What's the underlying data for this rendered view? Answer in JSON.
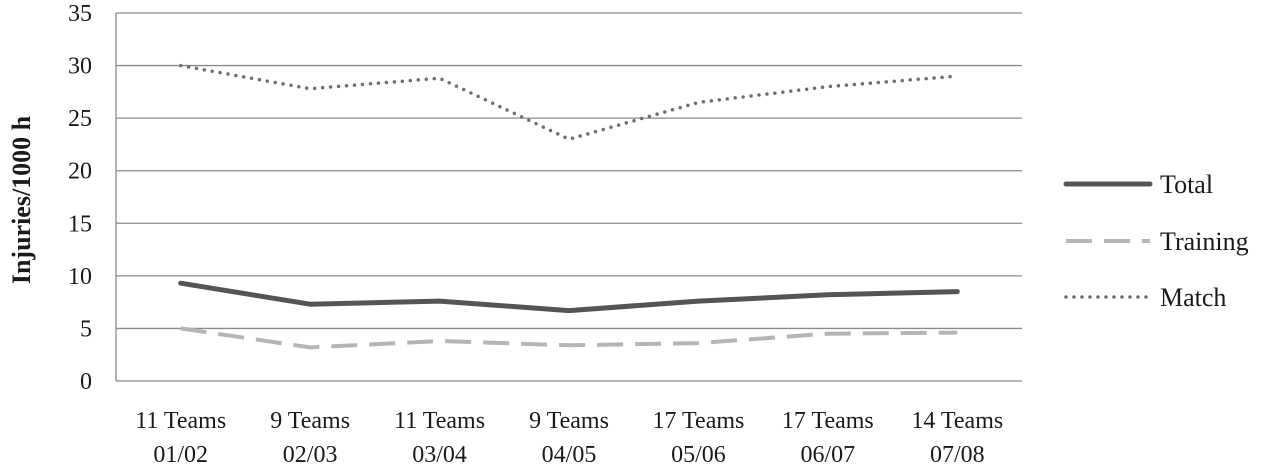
{
  "chart_data": {
    "type": "line",
    "ylabel": "Injuries/1000 h",
    "xlabel": "",
    "ylim": [
      0,
      35
    ],
    "yticks": [
      0,
      5,
      10,
      15,
      20,
      25,
      30,
      35
    ],
    "grid": true,
    "legend_position": "right",
    "categories": [
      [
        "11 Teams",
        "01/02"
      ],
      [
        "9 Teams",
        "02/03"
      ],
      [
        "11 Teams",
        "03/04"
      ],
      [
        "9 Teams",
        "04/05"
      ],
      [
        "17 Teams",
        "05/06"
      ],
      [
        "17 Teams",
        "06/07"
      ],
      [
        "14 Teams",
        "07/08"
      ]
    ],
    "series": [
      {
        "name": "Total",
        "style": "solid",
        "color": "#555555",
        "values": [
          9.3,
          7.3,
          7.6,
          6.7,
          7.6,
          8.2,
          8.5
        ]
      },
      {
        "name": "Training",
        "style": "dashed",
        "color": "#b5b5b5",
        "values": [
          5.0,
          3.2,
          3.8,
          3.4,
          3.6,
          4.5,
          4.6
        ]
      },
      {
        "name": "Match",
        "style": "dotted",
        "color": "#6e6e6e",
        "values": [
          30.0,
          27.8,
          28.8,
          23.0,
          26.5,
          28.0,
          29.0
        ]
      }
    ]
  }
}
